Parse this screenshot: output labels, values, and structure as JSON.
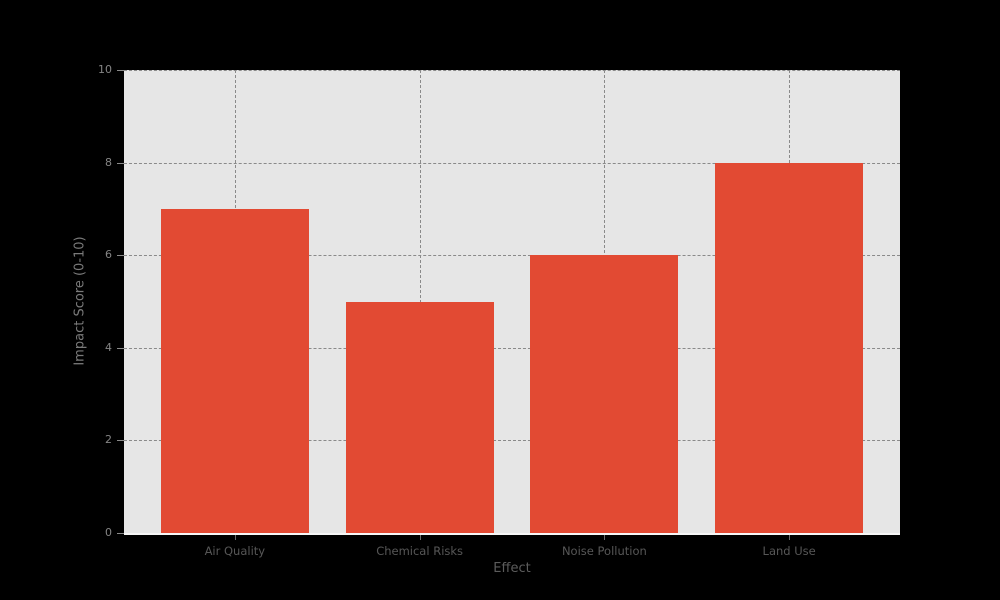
{
  "figure": {
    "background_color": "#000000"
  },
  "chart_data": {
    "type": "bar",
    "categories": [
      "Air Quality",
      "Chemical Risks",
      "Noise Pollution",
      "Land Use"
    ],
    "values": [
      7,
      5,
      6,
      8
    ],
    "title": "",
    "xlabel": "Effect",
    "ylabel": "Impact Score (0-10)",
    "ylim": [
      0,
      10
    ],
    "yticks": [
      0,
      2,
      4,
      6,
      8,
      10
    ],
    "xtick_labels": [
      "Air Quality",
      "Chemical Risks",
      "Noise Pollution",
      "Land Use"
    ],
    "bar_color": "#E24A33",
    "plot_background_color": "#E6E6E6",
    "grid": "dashed gray gridlines, horizontal at y ticks and vertical at each category center, drawn beneath bars",
    "grid_color": "#8a8a8a",
    "legend": "none"
  }
}
